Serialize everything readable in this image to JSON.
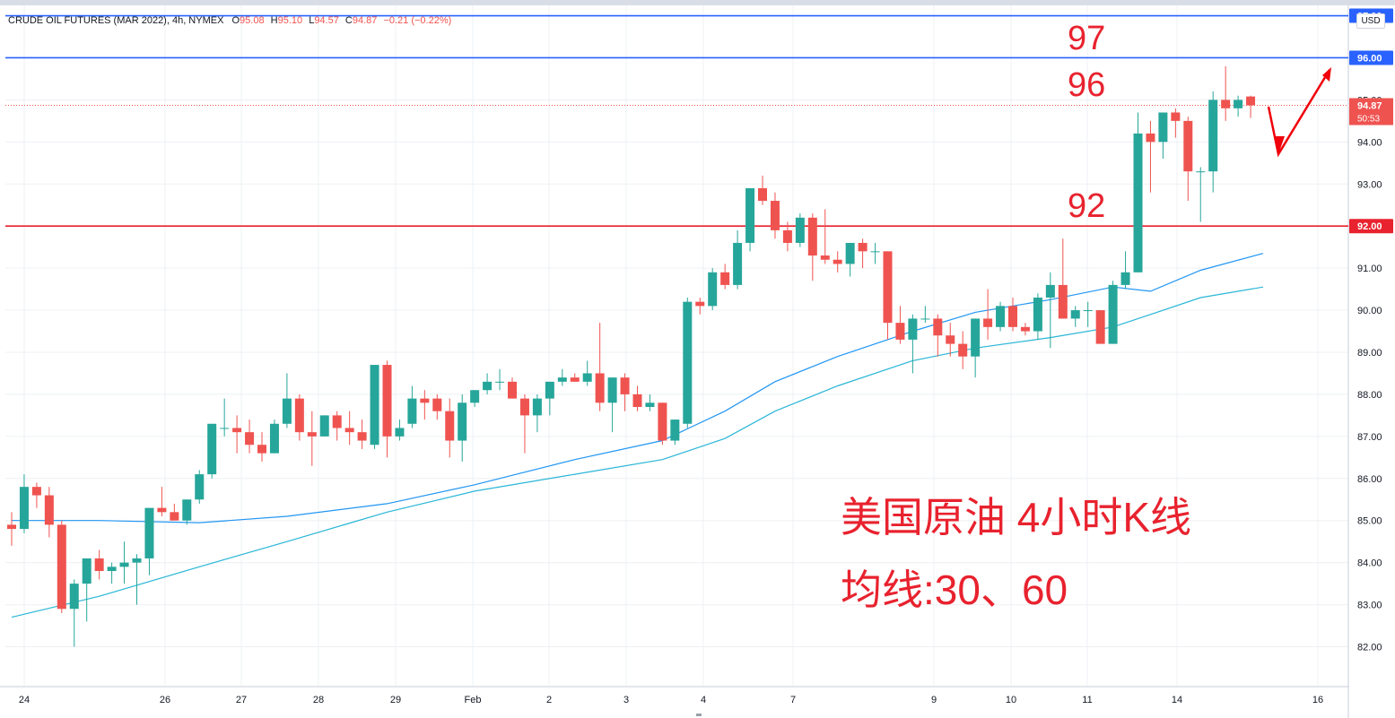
{
  "header": {
    "symbol": "CRUDE OIL FUTURES (MAR 2022), 4h, NYMEX",
    "open_label": "O",
    "open": "95.08",
    "high_label": "H",
    "high": "95.10",
    "low_label": "L",
    "low": "94.57",
    "close_label": "C",
    "close": "94.87",
    "change": "−0.21 (−0.22%)",
    "currency": "USD"
  },
  "annotations": {
    "level97": "97",
    "level96": "96",
    "level92": "92",
    "title": "美国原油 4小时K线",
    "ma_note": "均线:30、60"
  },
  "price_tags": {
    "top_partial": "97.00",
    "line96": "96.00",
    "line92": "92.00",
    "last": "94.87",
    "countdown": "50:53"
  },
  "colors": {
    "up": "#26a69a",
    "down": "#ef5350",
    "ma30": "#2196f3",
    "ma60": "#29b6d6",
    "hline_blue": "#2962ff",
    "hline_red": "#e8222e",
    "annotation": "#e8222e"
  },
  "chart_data": {
    "type": "candlestick",
    "timeframe": "4h",
    "ylim": [
      81.5,
      97.15
    ],
    "y_ticks": [
      "82.00",
      "83.00",
      "84.00",
      "85.00",
      "86.00",
      "87.00",
      "88.00",
      "89.00",
      "90.00",
      "91.00",
      "92.00",
      "93.00",
      "94.00",
      "95.00",
      "96.00"
    ],
    "x_ticks": [
      "24",
      "26",
      "27",
      "28",
      "29",
      "Feb",
      "2",
      "3",
      "4",
      "7",
      "9",
      "10",
      "11",
      "14",
      "16"
    ],
    "horizontal_lines": [
      {
        "price": 97.0,
        "color": "#2962ff"
      },
      {
        "price": 96.0,
        "color": "#2962ff"
      },
      {
        "price": 92.0,
        "color": "#e8222e"
      }
    ],
    "candles": [
      [
        84.9,
        85.2,
        84.4,
        84.8
      ],
      [
        84.8,
        86.1,
        84.7,
        85.8
      ],
      [
        85.8,
        85.9,
        85.3,
        85.6
      ],
      [
        85.6,
        85.8,
        84.6,
        84.9
      ],
      [
        84.9,
        85.0,
        82.8,
        82.9
      ],
      [
        82.9,
        83.6,
        82.0,
        83.5
      ],
      [
        83.5,
        84.1,
        82.6,
        84.1
      ],
      [
        84.1,
        84.3,
        83.6,
        83.8
      ],
      [
        83.8,
        84.0,
        83.5,
        83.9
      ],
      [
        83.9,
        84.5,
        83.5,
        84.0
      ],
      [
        84.0,
        84.2,
        83.0,
        84.1
      ],
      [
        84.1,
        85.3,
        83.7,
        85.3
      ],
      [
        85.3,
        85.8,
        85.1,
        85.2
      ],
      [
        85.2,
        85.4,
        85.0,
        85.0
      ],
      [
        85.0,
        85.5,
        84.9,
        85.5
      ],
      [
        85.5,
        86.2,
        85.4,
        86.1
      ],
      [
        86.1,
        87.3,
        86.0,
        87.3
      ],
      [
        87.2,
        87.9,
        87.0,
        87.2
      ],
      [
        87.2,
        87.5,
        86.6,
        87.1
      ],
      [
        87.1,
        87.4,
        86.6,
        86.8
      ],
      [
        86.8,
        87.1,
        86.4,
        86.6
      ],
      [
        86.6,
        87.4,
        86.6,
        87.3
      ],
      [
        87.3,
        88.5,
        87.2,
        87.9
      ],
      [
        87.9,
        88.0,
        86.9,
        87.1
      ],
      [
        87.1,
        87.6,
        86.3,
        87.0
      ],
      [
        87.0,
        87.5,
        87.0,
        87.5
      ],
      [
        87.5,
        87.6,
        86.9,
        87.2
      ],
      [
        87.2,
        87.6,
        86.8,
        87.1
      ],
      [
        87.1,
        87.4,
        86.7,
        86.9
      ],
      [
        86.8,
        88.7,
        86.7,
        88.7
      ],
      [
        88.7,
        88.8,
        86.5,
        87.0
      ],
      [
        87.0,
        87.4,
        86.9,
        87.2
      ],
      [
        87.3,
        88.2,
        87.2,
        87.9
      ],
      [
        87.9,
        88.1,
        87.4,
        87.8
      ],
      [
        87.9,
        88.0,
        87.4,
        87.6
      ],
      [
        87.6,
        87.9,
        86.5,
        86.9
      ],
      [
        86.9,
        88.0,
        86.4,
        87.8
      ],
      [
        87.8,
        88.1,
        87.7,
        88.1
      ],
      [
        88.1,
        88.5,
        88.0,
        88.3
      ],
      [
        88.3,
        88.6,
        88.1,
        88.3
      ],
      [
        88.3,
        88.4,
        87.9,
        87.9
      ],
      [
        87.9,
        88.0,
        86.6,
        87.5
      ],
      [
        87.5,
        88.0,
        87.1,
        87.9
      ],
      [
        87.9,
        88.3,
        87.5,
        88.3
      ],
      [
        88.3,
        88.6,
        88.2,
        88.4
      ],
      [
        88.4,
        88.5,
        88.3,
        88.3
      ],
      [
        88.3,
        88.8,
        88.2,
        88.5
      ],
      [
        88.5,
        89.7,
        87.6,
        87.8
      ],
      [
        87.8,
        88.4,
        87.1,
        88.4
      ],
      [
        88.4,
        88.5,
        87.6,
        88.0
      ],
      [
        88.0,
        88.2,
        87.6,
        87.7
      ],
      [
        87.7,
        88.0,
        87.6,
        87.8
      ],
      [
        87.8,
        87.8,
        86.8,
        86.9
      ],
      [
        86.9,
        87.4,
        86.8,
        87.4
      ],
      [
        87.3,
        90.3,
        87.2,
        90.2
      ],
      [
        90.2,
        90.3,
        89.9,
        90.1
      ],
      [
        90.1,
        91.0,
        90.0,
        90.9
      ],
      [
        90.9,
        91.1,
        90.5,
        90.6
      ],
      [
        90.6,
        91.9,
        90.5,
        91.6
      ],
      [
        91.6,
        92.9,
        91.4,
        92.9
      ],
      [
        92.9,
        93.2,
        92.5,
        92.6
      ],
      [
        92.6,
        92.8,
        91.7,
        91.9
      ],
      [
        91.9,
        92.1,
        91.4,
        91.6
      ],
      [
        91.6,
        92.3,
        91.5,
        92.2
      ],
      [
        92.2,
        92.3,
        90.7,
        91.3
      ],
      [
        91.3,
        92.4,
        91.1,
        91.2
      ],
      [
        91.2,
        91.4,
        90.9,
        91.1
      ],
      [
        91.1,
        91.6,
        90.8,
        91.6
      ],
      [
        91.6,
        91.7,
        91.0,
        91.4
      ],
      [
        91.4,
        91.6,
        91.1,
        91.4
      ],
      [
        91.4,
        91.4,
        89.3,
        89.7
      ],
      [
        89.7,
        90.1,
        89.2,
        89.3
      ],
      [
        89.3,
        89.9,
        88.5,
        89.8
      ],
      [
        89.8,
        90.1,
        89.7,
        89.8
      ],
      [
        89.8,
        89.9,
        88.9,
        89.4
      ],
      [
        89.4,
        89.7,
        88.9,
        89.2
      ],
      [
        89.2,
        89.5,
        88.6,
        88.9
      ],
      [
        88.9,
        89.8,
        88.4,
        89.8
      ],
      [
        89.8,
        90.5,
        89.3,
        89.6
      ],
      [
        89.6,
        90.2,
        89.5,
        90.1
      ],
      [
        90.1,
        90.3,
        89.5,
        89.6
      ],
      [
        89.6,
        89.7,
        89.4,
        89.5
      ],
      [
        89.5,
        90.4,
        89.3,
        90.3
      ],
      [
        90.3,
        90.9,
        89.1,
        90.6
      ],
      [
        90.6,
        91.7,
        89.8,
        89.8
      ],
      [
        89.8,
        90.1,
        89.6,
        90.0
      ],
      [
        90.0,
        90.2,
        89.6,
        90.0
      ],
      [
        90.0,
        90.0,
        89.2,
        89.2
      ],
      [
        89.2,
        90.7,
        89.2,
        90.6
      ],
      [
        90.6,
        91.4,
        90.5,
        90.9
      ],
      [
        90.9,
        94.7,
        90.9,
        94.2
      ],
      [
        94.2,
        94.5,
        92.8,
        94.0
      ],
      [
        94.0,
        94.7,
        93.6,
        94.7
      ],
      [
        94.7,
        94.8,
        94.1,
        94.5
      ],
      [
        94.5,
        94.6,
        92.6,
        93.3
      ],
      [
        93.3,
        93.4,
        92.1,
        93.3
      ],
      [
        93.3,
        95.2,
        92.8,
        95.0
      ],
      [
        95.0,
        95.8,
        94.5,
        94.8
      ],
      [
        94.8,
        95.1,
        94.6,
        95.0
      ],
      [
        95.08,
        95.1,
        94.57,
        94.87
      ]
    ],
    "ma30": [
      [
        0,
        85.0
      ],
      [
        7,
        85.0
      ],
      [
        15,
        84.95
      ],
      [
        22,
        85.1
      ],
      [
        30,
        85.4
      ],
      [
        37,
        85.85
      ],
      [
        45,
        86.45
      ],
      [
        52,
        86.9
      ],
      [
        57,
        87.6
      ],
      [
        61,
        88.3
      ],
      [
        66,
        88.9
      ],
      [
        72,
        89.5
      ],
      [
        77,
        89.95
      ],
      [
        83,
        90.25
      ],
      [
        88,
        90.55
      ],
      [
        91,
        90.45
      ],
      [
        95,
        90.95
      ],
      [
        100,
        91.35
      ]
    ],
    "ma60": [
      [
        0,
        82.7
      ],
      [
        7,
        83.2
      ],
      [
        15,
        83.9
      ],
      [
        22,
        84.5
      ],
      [
        30,
        85.2
      ],
      [
        37,
        85.7
      ],
      [
        45,
        86.1
      ],
      [
        52,
        86.45
      ],
      [
        57,
        86.95
      ],
      [
        61,
        87.6
      ],
      [
        66,
        88.2
      ],
      [
        72,
        88.8
      ],
      [
        77,
        89.1
      ],
      [
        83,
        89.35
      ],
      [
        88,
        89.6
      ],
      [
        91,
        89.9
      ],
      [
        95,
        90.3
      ],
      [
        100,
        90.55
      ]
    ],
    "last_price": 94.87
  }
}
